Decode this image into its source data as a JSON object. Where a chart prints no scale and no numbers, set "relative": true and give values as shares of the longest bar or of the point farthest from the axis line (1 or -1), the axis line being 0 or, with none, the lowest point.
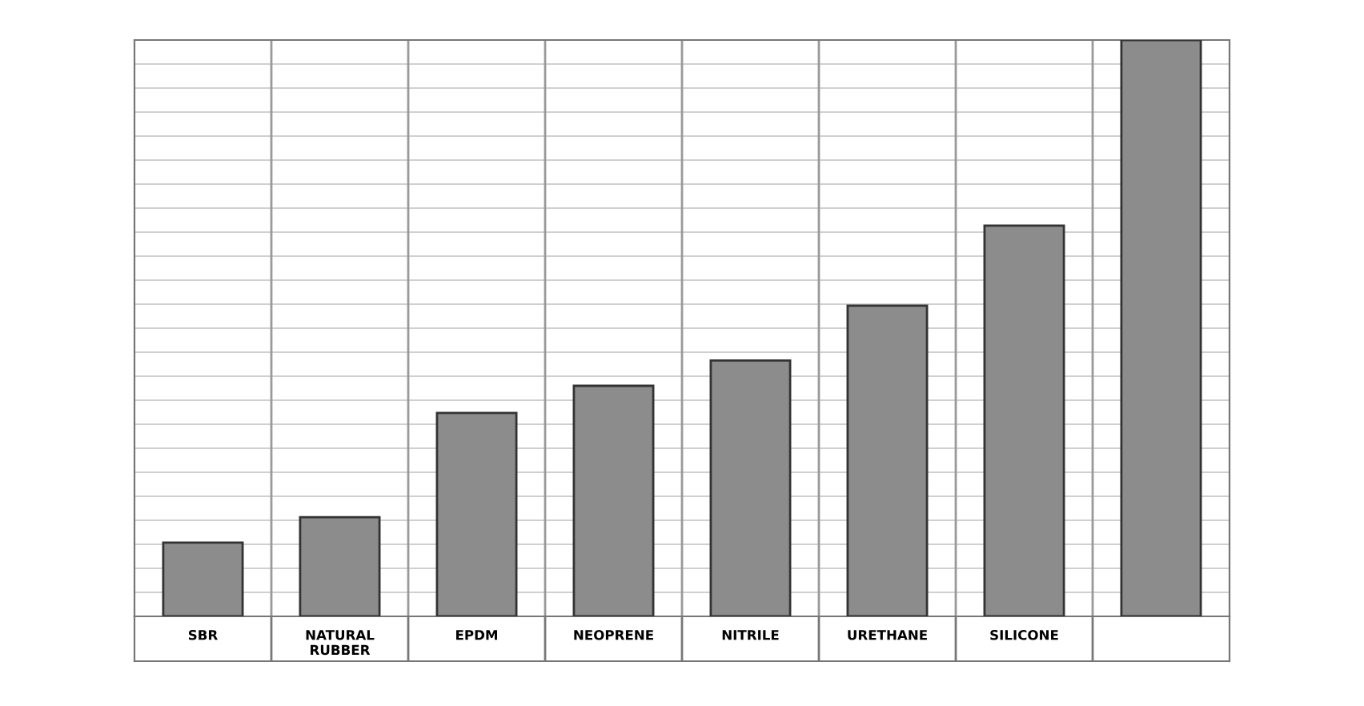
{
  "chart_data": {
    "type": "bar",
    "relative": true,
    "categories": [
      "SBR",
      "NATURAL\nRUBBER",
      "EPDM",
      "NEOPRENE",
      "NITRILE",
      "URETHANE",
      "SILICONE",
      null
    ],
    "values": [
      0.128,
      0.172,
      0.353,
      0.4,
      0.444,
      0.539,
      0.678,
      1
    ],
    "color": "#8c8c8c",
    "grid": "y"
  }
}
